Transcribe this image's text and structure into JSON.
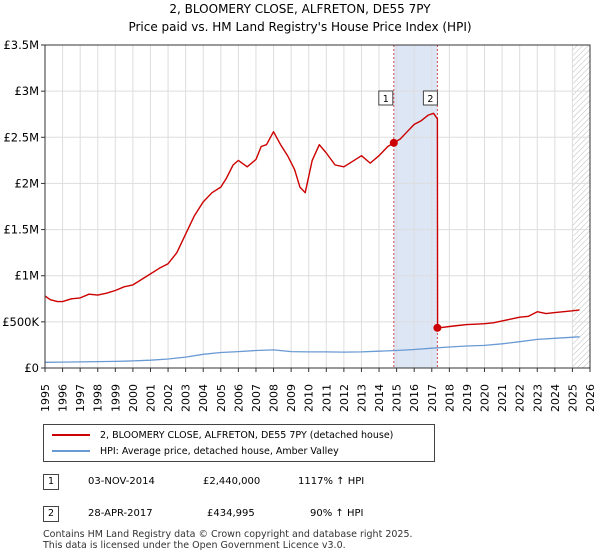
{
  "chart_data": {
    "type": "line",
    "title": "2, BLOOMERY CLOSE, ALFRETON, DE55 7PY",
    "subtitle": "Price paid vs. HM Land Registry's House Price Index (HPI)",
    "xlim": [
      1995,
      2026
    ],
    "ylim": [
      0,
      3500000
    ],
    "y_ticks": [
      0,
      500000,
      1000000,
      1500000,
      2000000,
      2500000,
      3000000,
      3500000
    ],
    "y_tick_labels": [
      "£0",
      "£500K",
      "£1M",
      "£1.5M",
      "£2M",
      "£2.5M",
      "£3M",
      "£3.5M"
    ],
    "x_ticks": [
      1995,
      1996,
      1997,
      1998,
      1999,
      2000,
      2001,
      2002,
      2003,
      2004,
      2005,
      2006,
      2007,
      2008,
      2009,
      2010,
      2011,
      2012,
      2013,
      2014,
      2015,
      2016,
      2017,
      2018,
      2019,
      2020,
      2021,
      2022,
      2023,
      2024,
      2025,
      2026
    ],
    "grid": true,
    "series": [
      {
        "name": "2, BLOOMERY CLOSE, ALFRETON, DE55 7PY (detached house)",
        "color": "#cc0000",
        "x": [
          1995.0,
          1995.3,
          1995.7,
          1996.0,
          1996.5,
          1997.0,
          1997.5,
          1998.0,
          1998.5,
          1999.0,
          1999.5,
          2000.0,
          2000.5,
          2001.0,
          2001.5,
          2002.0,
          2002.5,
          2003.0,
          2003.5,
          2004.0,
          2004.5,
          2005.0,
          2005.3,
          2005.7,
          2006.0,
          2006.5,
          2007.0,
          2007.3,
          2007.6,
          2008.0,
          2008.4,
          2008.8,
          2009.2,
          2009.5,
          2009.8,
          2010.2,
          2010.6,
          2011.0,
          2011.5,
          2012.0,
          2012.5,
          2013.0,
          2013.5,
          2014.0,
          2014.5,
          2014.84,
          2015.2,
          2015.6,
          2016.0,
          2016.4,
          2016.8,
          2017.1,
          2017.32,
          2017.33,
          2017.6,
          2018.0,
          2018.5,
          2019.0,
          2019.5,
          2020.0,
          2020.5,
          2021.0,
          2021.5,
          2022.0,
          2022.5,
          2023.0,
          2023.5,
          2024.0,
          2024.5,
          2025.0,
          2025.4
        ],
        "y": [
          780000,
          740000,
          720000,
          720000,
          750000,
          760000,
          800000,
          790000,
          810000,
          840000,
          880000,
          900000,
          960000,
          1020000,
          1080000,
          1130000,
          1250000,
          1450000,
          1650000,
          1800000,
          1900000,
          1960000,
          2050000,
          2200000,
          2250000,
          2180000,
          2260000,
          2400000,
          2420000,
          2560000,
          2420000,
          2300000,
          2150000,
          1960000,
          1900000,
          2250000,
          2420000,
          2330000,
          2200000,
          2180000,
          2240000,
          2300000,
          2220000,
          2300000,
          2400000,
          2440000,
          2480000,
          2560000,
          2640000,
          2680000,
          2740000,
          2760000,
          2700000,
          434995,
          440000,
          450000,
          460000,
          470000,
          475000,
          480000,
          490000,
          510000,
          530000,
          550000,
          560000,
          610000,
          590000,
          600000,
          610000,
          620000,
          630000
        ]
      },
      {
        "name": "HPI: Average price, detached house, Amber Valley",
        "color": "#6a9ad4",
        "x": [
          1995.0,
          1996,
          1997,
          1998,
          1999,
          2000,
          2001,
          2002,
          2003,
          2004,
          2005,
          2006,
          2007,
          2008,
          2009,
          2010,
          2011,
          2012,
          2013,
          2014,
          2015,
          2016,
          2017,
          2018,
          2019,
          2020,
          2021,
          2022,
          2023,
          2024,
          2025.4
        ],
        "y": [
          62000,
          64000,
          66000,
          69000,
          72000,
          77000,
          85000,
          98000,
          118000,
          148000,
          168000,
          178000,
          190000,
          196000,
          178000,
          175000,
          174000,
          172000,
          174000,
          182000,
          190000,
          200000,
          215000,
          228000,
          238000,
          245000,
          262000,
          285000,
          310000,
          322000,
          338000
        ]
      }
    ],
    "sales": [
      {
        "id": "1",
        "x": 2014.84,
        "y": 2440000
      },
      {
        "id": "2",
        "x": 2017.32,
        "y": 434995
      }
    ],
    "hatch_start": 2025.0
  },
  "legend": {
    "property": "2, BLOOMERY CLOSE, ALFRETON, DE55 7PY (detached house)",
    "hpi": "HPI: Average price, detached house, Amber Valley"
  },
  "transactions": [
    {
      "id": "1",
      "date": "03-NOV-2014",
      "price": "£2,440,000",
      "hpi": "1117% ↑ HPI"
    },
    {
      "id": "2",
      "date": "28-APR-2017",
      "price": "£434,995",
      "hpi": "90% ↑ HPI"
    }
  ],
  "footer": {
    "line1": "Contains HM Land Registry data © Crown copyright and database right 2025.",
    "line2": "This data is licensed under the Open Government Licence v3.0."
  },
  "colors": {
    "property": "#cc0000",
    "hpi": "#6a9ad4",
    "sale_band": "#dde6f5"
  }
}
